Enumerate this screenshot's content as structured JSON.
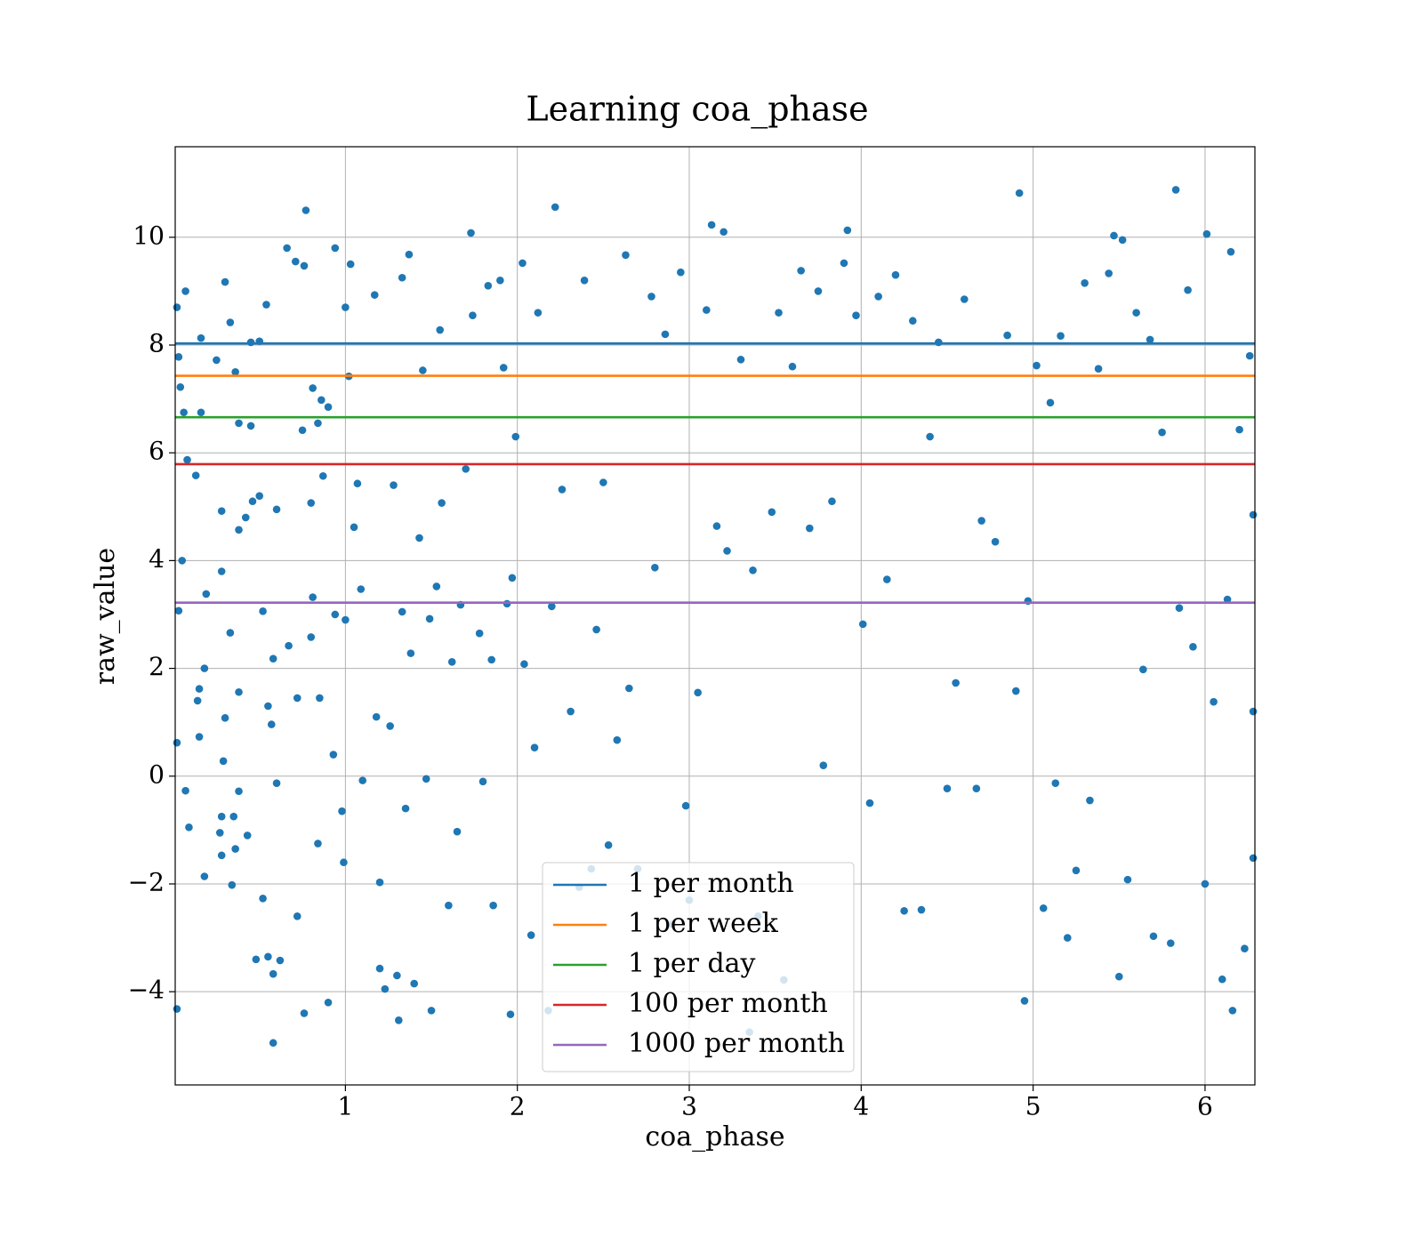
{
  "chart_data": {
    "type": "scatter",
    "title": "Learning coa_phase",
    "xlabel": "coa_phase",
    "ylabel": "raw_value",
    "xlim": [
      0.01,
      6.29
    ],
    "ylim": [
      -5.73,
      11.68
    ],
    "xticks": [
      1,
      2,
      3,
      4,
      5,
      6
    ],
    "yticks": [
      {
        "value": -4,
        "label": "−4"
      },
      {
        "value": -2,
        "label": "−2"
      },
      0,
      2,
      4,
      6,
      8,
      10
    ],
    "grid": true,
    "legend": "lower center",
    "color": "#1f77b4",
    "points": [
      [
        0.02,
        8.7
      ],
      [
        0.03,
        7.78
      ],
      [
        0.04,
        7.22
      ],
      [
        0.06,
        6.75
      ],
      [
        0.07,
        9.0
      ],
      [
        0.05,
        4.0
      ],
      [
        0.03,
        3.07
      ],
      [
        0.02,
        0.62
      ],
      [
        0.07,
        -0.27
      ],
      [
        0.09,
        -0.95
      ],
      [
        0.02,
        -4.32
      ],
      [
        0.08,
        5.87
      ],
      [
        0.13,
        5.58
      ],
      [
        0.16,
        8.13
      ],
      [
        0.16,
        6.75
      ],
      [
        0.15,
        1.62
      ],
      [
        0.14,
        1.4
      ],
      [
        0.15,
        0.73
      ],
      [
        0.18,
        2.0
      ],
      [
        0.18,
        -1.86
      ],
      [
        0.19,
        3.38
      ],
      [
        0.25,
        7.72
      ],
      [
        0.27,
        -1.05
      ],
      [
        0.28,
        -0.75
      ],
      [
        0.28,
        -1.47
      ],
      [
        0.28,
        4.92
      ],
      [
        0.28,
        3.8
      ],
      [
        0.3,
        9.17
      ],
      [
        0.3,
        1.08
      ],
      [
        0.29,
        0.28
      ],
      [
        0.33,
        8.42
      ],
      [
        0.33,
        2.66
      ],
      [
        0.34,
        -2.02
      ],
      [
        0.35,
        -0.75
      ],
      [
        0.36,
        7.5
      ],
      [
        0.36,
        -1.35
      ],
      [
        0.38,
        6.55
      ],
      [
        0.38,
        4.57
      ],
      [
        0.38,
        1.56
      ],
      [
        0.38,
        -0.28
      ],
      [
        0.42,
        4.8
      ],
      [
        0.43,
        -1.1
      ],
      [
        0.45,
        8.05
      ],
      [
        0.45,
        6.5
      ],
      [
        0.46,
        5.1
      ],
      [
        0.48,
        -3.4
      ],
      [
        0.5,
        5.2
      ],
      [
        0.5,
        8.07
      ],
      [
        0.52,
        3.06
      ],
      [
        0.52,
        -2.27
      ],
      [
        0.54,
        8.75
      ],
      [
        0.55,
        1.3
      ],
      [
        0.55,
        -3.35
      ],
      [
        0.57,
        0.96
      ],
      [
        0.58,
        2.18
      ],
      [
        0.58,
        -3.67
      ],
      [
        0.58,
        -4.95
      ],
      [
        0.6,
        4.95
      ],
      [
        0.6,
        -0.13
      ],
      [
        0.62,
        -3.42
      ],
      [
        0.66,
        9.8
      ],
      [
        0.67,
        2.42
      ],
      [
        0.71,
        9.55
      ],
      [
        0.72,
        1.45
      ],
      [
        0.72,
        -2.6
      ],
      [
        0.75,
        6.42
      ],
      [
        0.76,
        9.47
      ],
      [
        0.77,
        10.5
      ],
      [
        0.76,
        -4.4
      ],
      [
        0.8,
        2.58
      ],
      [
        0.8,
        5.07
      ],
      [
        0.81,
        3.32
      ],
      [
        0.81,
        7.2
      ],
      [
        0.84,
        6.55
      ],
      [
        0.84,
        -1.25
      ],
      [
        0.85,
        1.45
      ],
      [
        0.86,
        6.98
      ],
      [
        0.87,
        5.57
      ],
      [
        0.9,
        6.85
      ],
      [
        0.9,
        -4.2
      ],
      [
        0.94,
        9.8
      ],
      [
        0.94,
        3.0
      ],
      [
        0.93,
        0.4
      ],
      [
        0.98,
        -0.65
      ],
      [
        0.99,
        -1.6
      ],
      [
        1.0,
        8.7
      ],
      [
        1.0,
        2.9
      ],
      [
        1.02,
        7.42
      ],
      [
        1.03,
        9.5
      ],
      [
        1.05,
        4.62
      ],
      [
        1.07,
        5.43
      ],
      [
        1.09,
        3.47
      ],
      [
        1.1,
        -0.08
      ],
      [
        1.17,
        8.93
      ],
      [
        1.18,
        1.1
      ],
      [
        1.2,
        -1.97
      ],
      [
        1.2,
        -3.57
      ],
      [
        1.23,
        -3.95
      ],
      [
        1.26,
        0.93
      ],
      [
        1.28,
        5.4
      ],
      [
        1.3,
        -3.7
      ],
      [
        1.31,
        -4.53
      ],
      [
        1.33,
        9.25
      ],
      [
        1.33,
        3.05
      ],
      [
        1.35,
        -0.6
      ],
      [
        1.37,
        9.68
      ],
      [
        1.38,
        2.28
      ],
      [
        1.4,
        -3.85
      ],
      [
        1.43,
        4.42
      ],
      [
        1.45,
        7.53
      ],
      [
        1.47,
        -0.05
      ],
      [
        1.49,
        2.92
      ],
      [
        1.5,
        -4.35
      ],
      [
        1.53,
        3.52
      ],
      [
        1.55,
        8.28
      ],
      [
        1.56,
        5.07
      ],
      [
        1.6,
        -2.4
      ],
      [
        1.62,
        2.12
      ],
      [
        1.65,
        -1.03
      ],
      [
        1.67,
        3.18
      ],
      [
        1.7,
        5.7
      ],
      [
        1.73,
        10.08
      ],
      [
        1.74,
        8.55
      ],
      [
        1.78,
        2.65
      ],
      [
        1.8,
        -0.1
      ],
      [
        1.83,
        9.1
      ],
      [
        1.85,
        2.16
      ],
      [
        1.86,
        -2.4
      ],
      [
        1.9,
        9.2
      ],
      [
        1.92,
        7.58
      ],
      [
        1.94,
        3.2
      ],
      [
        1.96,
        -4.42
      ],
      [
        1.97,
        3.68
      ],
      [
        1.99,
        6.3
      ],
      [
        2.03,
        9.52
      ],
      [
        2.04,
        2.08
      ],
      [
        2.08,
        -2.95
      ],
      [
        2.1,
        0.53
      ],
      [
        2.12,
        8.6
      ],
      [
        2.18,
        -4.35
      ],
      [
        2.2,
        3.15
      ],
      [
        2.22,
        10.56
      ],
      [
        2.26,
        5.32
      ],
      [
        2.31,
        1.2
      ],
      [
        2.36,
        -2.06
      ],
      [
        2.39,
        9.2
      ],
      [
        2.43,
        -1.72
      ],
      [
        2.46,
        2.72
      ],
      [
        2.5,
        5.45
      ],
      [
        2.53,
        -1.28
      ],
      [
        2.58,
        0.67
      ],
      [
        2.63,
        9.67
      ],
      [
        2.65,
        1.63
      ],
      [
        2.7,
        -1.72
      ],
      [
        2.78,
        8.9
      ],
      [
        2.8,
        3.87
      ],
      [
        2.86,
        8.2
      ],
      [
        2.9,
        -2.75
      ],
      [
        2.95,
        9.35
      ],
      [
        2.98,
        -0.55
      ],
      [
        3.0,
        -2.3
      ],
      [
        3.05,
        1.55
      ],
      [
        3.1,
        8.65
      ],
      [
        3.13,
        10.23
      ],
      [
        3.16,
        4.64
      ],
      [
        3.2,
        10.1
      ],
      [
        3.22,
        4.18
      ],
      [
        3.3,
        7.73
      ],
      [
        3.35,
        -4.75
      ],
      [
        3.37,
        3.82
      ],
      [
        3.4,
        -2.6
      ],
      [
        3.48,
        4.9
      ],
      [
        3.52,
        8.6
      ],
      [
        3.55,
        -3.78
      ],
      [
        3.6,
        7.6
      ],
      [
        3.65,
        9.38
      ],
      [
        3.7,
        4.6
      ],
      [
        3.75,
        9.0
      ],
      [
        3.78,
        0.2
      ],
      [
        3.83,
        5.1
      ],
      [
        3.9,
        9.52
      ],
      [
        3.92,
        10.13
      ],
      [
        3.97,
        8.55
      ],
      [
        4.01,
        2.82
      ],
      [
        4.05,
        -0.5
      ],
      [
        4.1,
        8.9
      ],
      [
        4.15,
        3.65
      ],
      [
        4.2,
        9.3
      ],
      [
        4.25,
        -2.5
      ],
      [
        4.3,
        8.45
      ],
      [
        4.35,
        -2.48
      ],
      [
        4.4,
        6.3
      ],
      [
        4.45,
        8.05
      ],
      [
        4.5,
        -0.23
      ],
      [
        4.55,
        1.73
      ],
      [
        4.6,
        8.85
      ],
      [
        4.67,
        -0.23
      ],
      [
        4.7,
        4.74
      ],
      [
        4.78,
        4.35
      ],
      [
        4.85,
        8.18
      ],
      [
        4.9,
        1.58
      ],
      [
        4.92,
        10.82
      ],
      [
        4.95,
        -4.17
      ],
      [
        4.97,
        3.25
      ],
      [
        5.02,
        7.62
      ],
      [
        5.06,
        -2.45
      ],
      [
        5.1,
        6.93
      ],
      [
        5.13,
        -0.13
      ],
      [
        5.16,
        8.17
      ],
      [
        5.2,
        -3.0
      ],
      [
        5.25,
        -1.75
      ],
      [
        5.3,
        9.15
      ],
      [
        5.33,
        -0.45
      ],
      [
        5.38,
        7.56
      ],
      [
        5.44,
        9.33
      ],
      [
        5.47,
        10.03
      ],
      [
        5.5,
        -3.72
      ],
      [
        5.52,
        9.95
      ],
      [
        5.55,
        -1.92
      ],
      [
        5.6,
        8.6
      ],
      [
        5.64,
        1.98
      ],
      [
        5.68,
        8.1
      ],
      [
        5.7,
        -2.97
      ],
      [
        5.75,
        6.38
      ],
      [
        5.8,
        -3.1
      ],
      [
        5.83,
        10.88
      ],
      [
        5.85,
        3.12
      ],
      [
        5.9,
        9.02
      ],
      [
        5.93,
        2.4
      ],
      [
        6.0,
        -2.0
      ],
      [
        6.01,
        10.06
      ],
      [
        6.05,
        1.38
      ],
      [
        6.1,
        -3.77
      ],
      [
        6.13,
        3.28
      ],
      [
        6.15,
        9.73
      ],
      [
        6.16,
        -4.35
      ],
      [
        6.2,
        6.43
      ],
      [
        6.23,
        -3.2
      ],
      [
        6.26,
        7.8
      ],
      [
        6.28,
        4.85
      ],
      [
        6.28,
        -1.52
      ],
      [
        6.28,
        1.2
      ]
    ],
    "hlines": [
      {
        "name": "1 per month",
        "color": "#1f77b4",
        "value": 8.03
      },
      {
        "name": "1 per week",
        "color": "#ff7f0e",
        "value": 7.43
      },
      {
        "name": "1 per day",
        "color": "#2ca02c",
        "value": 6.66
      },
      {
        "name": "100 per month",
        "color": "#d62728",
        "value": 5.79
      },
      {
        "name": "1000 per month",
        "color": "#9467bd",
        "value": 3.22
      }
    ]
  }
}
